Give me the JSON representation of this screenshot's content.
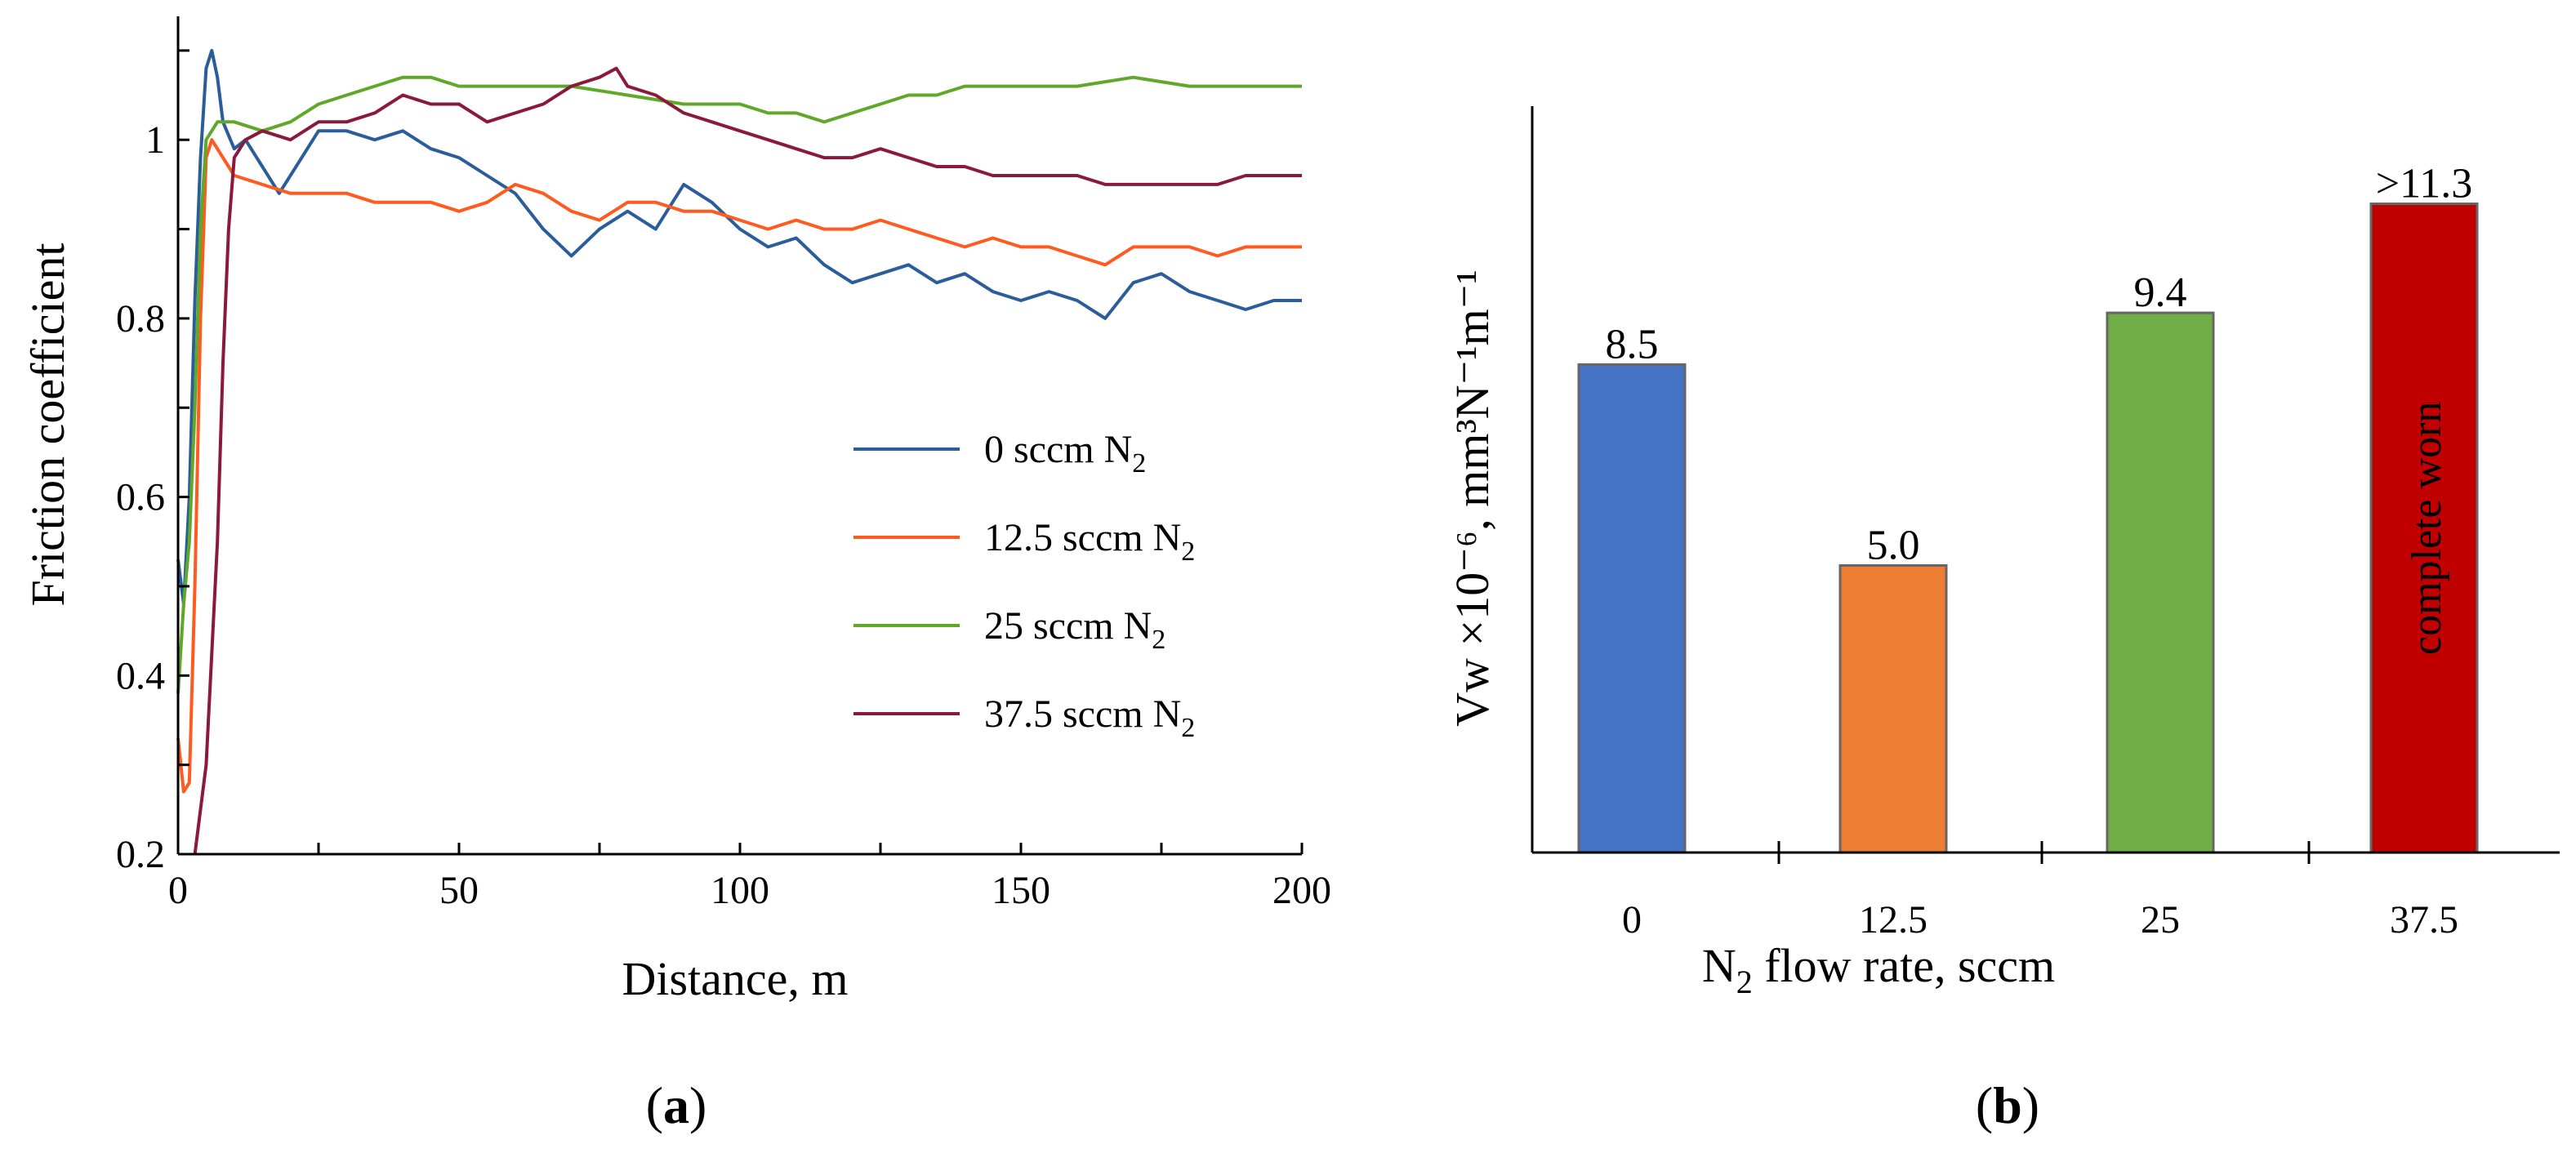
{
  "chart_data": [
    {
      "panel": "a",
      "type": "line",
      "caption": "a",
      "xlabel": "Distance, m",
      "ylabel": "Friction coefficient",
      "xlim": [
        0,
        200
      ],
      "ylim": [
        0.2,
        1.12
      ],
      "xticks": [
        "0",
        "50",
        "100",
        "150",
        "200"
      ],
      "yticks": [
        "0.2",
        "0.4",
        "0.6",
        "0.8",
        "1"
      ],
      "legend_position": "center-right",
      "series": [
        {
          "name": "0 sccm N",
          "sub": "2",
          "color": "#2a5d9a",
          "points": [
            [
              0,
              0.53
            ],
            [
              1,
              0.48
            ],
            [
              2,
              0.6
            ],
            [
              3,
              0.82
            ],
            [
              4,
              0.98
            ],
            [
              5,
              1.08
            ],
            [
              6,
              1.1
            ],
            [
              7,
              1.07
            ],
            [
              8,
              1.02
            ],
            [
              10,
              0.99
            ],
            [
              12,
              1.0
            ],
            [
              15,
              0.97
            ],
            [
              18,
              0.94
            ],
            [
              22,
              0.98
            ],
            [
              25,
              1.01
            ],
            [
              30,
              1.01
            ],
            [
              35,
              1.0
            ],
            [
              40,
              1.01
            ],
            [
              45,
              0.99
            ],
            [
              50,
              0.98
            ],
            [
              55,
              0.96
            ],
            [
              60,
              0.94
            ],
            [
              65,
              0.9
            ],
            [
              70,
              0.87
            ],
            [
              75,
              0.9
            ],
            [
              80,
              0.92
            ],
            [
              85,
              0.9
            ],
            [
              90,
              0.95
            ],
            [
              95,
              0.93
            ],
            [
              100,
              0.9
            ],
            [
              105,
              0.88
            ],
            [
              110,
              0.89
            ],
            [
              115,
              0.86
            ],
            [
              120,
              0.84
            ],
            [
              125,
              0.85
            ],
            [
              130,
              0.86
            ],
            [
              135,
              0.84
            ],
            [
              140,
              0.85
            ],
            [
              145,
              0.83
            ],
            [
              150,
              0.82
            ],
            [
              155,
              0.83
            ],
            [
              160,
              0.82
            ],
            [
              165,
              0.8
            ],
            [
              170,
              0.84
            ],
            [
              175,
              0.85
            ],
            [
              180,
              0.83
            ],
            [
              185,
              0.82
            ],
            [
              190,
              0.81
            ],
            [
              195,
              0.82
            ],
            [
              200,
              0.82
            ]
          ]
        },
        {
          "name": "12.5 sccm N",
          "sub": "2",
          "color": "#ff5a1f",
          "points": [
            [
              0,
              0.33
            ],
            [
              1,
              0.27
            ],
            [
              2,
              0.28
            ],
            [
              3,
              0.5
            ],
            [
              4,
              0.8
            ],
            [
              5,
              0.98
            ],
            [
              6,
              1.0
            ],
            [
              8,
              0.98
            ],
            [
              10,
              0.96
            ],
            [
              15,
              0.95
            ],
            [
              20,
              0.94
            ],
            [
              25,
              0.94
            ],
            [
              30,
              0.94
            ],
            [
              35,
              0.93
            ],
            [
              40,
              0.93
            ],
            [
              45,
              0.93
            ],
            [
              50,
              0.92
            ],
            [
              55,
              0.93
            ],
            [
              60,
              0.95
            ],
            [
              65,
              0.94
            ],
            [
              70,
              0.92
            ],
            [
              75,
              0.91
            ],
            [
              80,
              0.93
            ],
            [
              85,
              0.93
            ],
            [
              90,
              0.92
            ],
            [
              95,
              0.92
            ],
            [
              100,
              0.91
            ],
            [
              105,
              0.9
            ],
            [
              110,
              0.91
            ],
            [
              115,
              0.9
            ],
            [
              120,
              0.9
            ],
            [
              125,
              0.91
            ],
            [
              130,
              0.9
            ],
            [
              135,
              0.89
            ],
            [
              140,
              0.88
            ],
            [
              145,
              0.89
            ],
            [
              150,
              0.88
            ],
            [
              155,
              0.88
            ],
            [
              160,
              0.87
            ],
            [
              165,
              0.86
            ],
            [
              170,
              0.88
            ],
            [
              175,
              0.88
            ],
            [
              180,
              0.88
            ],
            [
              185,
              0.87
            ],
            [
              190,
              0.88
            ],
            [
              195,
              0.88
            ],
            [
              200,
              0.88
            ]
          ]
        },
        {
          "name": "25 sccm N",
          "sub": "2",
          "color": "#5fa82a",
          "points": [
            [
              0,
              0.38
            ],
            [
              1,
              0.48
            ],
            [
              2,
              0.55
            ],
            [
              3,
              0.7
            ],
            [
              4,
              0.9
            ],
            [
              5,
              1.0
            ],
            [
              7,
              1.02
            ],
            [
              10,
              1.02
            ],
            [
              15,
              1.01
            ],
            [
              20,
              1.02
            ],
            [
              25,
              1.04
            ],
            [
              30,
              1.05
            ],
            [
              35,
              1.06
            ],
            [
              40,
              1.07
            ],
            [
              45,
              1.07
            ],
            [
              50,
              1.06
            ],
            [
              60,
              1.06
            ],
            [
              70,
              1.06
            ],
            [
              80,
              1.05
            ],
            [
              90,
              1.04
            ],
            [
              100,
              1.04
            ],
            [
              105,
              1.03
            ],
            [
              110,
              1.03
            ],
            [
              115,
              1.02
            ],
            [
              120,
              1.03
            ],
            [
              125,
              1.04
            ],
            [
              130,
              1.05
            ],
            [
              135,
              1.05
            ],
            [
              140,
              1.06
            ],
            [
              145,
              1.06
            ],
            [
              150,
              1.06
            ],
            [
              155,
              1.06
            ],
            [
              160,
              1.06
            ],
            [
              170,
              1.07
            ],
            [
              180,
              1.06
            ],
            [
              190,
              1.06
            ],
            [
              200,
              1.06
            ]
          ]
        },
        {
          "name": "37.5 sccm N",
          "sub": "2",
          "color": "#8b1a3a",
          "points": [
            [
              3,
              0.2
            ],
            [
              5,
              0.3
            ],
            [
              7,
              0.55
            ],
            [
              8,
              0.75
            ],
            [
              9,
              0.9
            ],
            [
              10,
              0.98
            ],
            [
              12,
              1.0
            ],
            [
              15,
              1.01
            ],
            [
              20,
              1.0
            ],
            [
              25,
              1.02
            ],
            [
              30,
              1.02
            ],
            [
              35,
              1.03
            ],
            [
              40,
              1.05
            ],
            [
              45,
              1.04
            ],
            [
              50,
              1.04
            ],
            [
              55,
              1.02
            ],
            [
              60,
              1.03
            ],
            [
              65,
              1.04
            ],
            [
              70,
              1.06
            ],
            [
              75,
              1.07
            ],
            [
              78,
              1.08
            ],
            [
              80,
              1.06
            ],
            [
              85,
              1.05
            ],
            [
              90,
              1.03
            ],
            [
              95,
              1.02
            ],
            [
              100,
              1.01
            ],
            [
              105,
              1.0
            ],
            [
              110,
              0.99
            ],
            [
              115,
              0.98
            ],
            [
              120,
              0.98
            ],
            [
              125,
              0.99
            ],
            [
              130,
              0.98
            ],
            [
              135,
              0.97
            ],
            [
              140,
              0.97
            ],
            [
              145,
              0.96
            ],
            [
              150,
              0.96
            ],
            [
              155,
              0.96
            ],
            [
              160,
              0.96
            ],
            [
              165,
              0.95
            ],
            [
              170,
              0.95
            ],
            [
              175,
              0.95
            ],
            [
              180,
              0.95
            ],
            [
              185,
              0.95
            ],
            [
              190,
              0.96
            ],
            [
              195,
              0.96
            ],
            [
              200,
              0.96
            ]
          ]
        }
      ]
    },
    {
      "panel": "b",
      "type": "bar",
      "caption": "b",
      "xlabel_pre": "N",
      "xlabel_sub": "2",
      "xlabel_post": " flow rate, sccm",
      "ylabel": "Vw ×10⁻⁶, mm³N⁻¹m⁻¹",
      "ylim": [
        0,
        13
      ],
      "categories": [
        "0",
        "12.5",
        "25",
        "37.5"
      ],
      "values": [
        8.5,
        5.0,
        9.4,
        11.3
      ],
      "value_labels": [
        "8.5",
        "5.0",
        "9.4",
        ">11.3"
      ],
      "colors": [
        "#4472c4",
        "#ed7d31",
        "#70ad47",
        "#c00000"
      ],
      "annotations": [
        "",
        "",
        "",
        "complete worn"
      ]
    }
  ]
}
